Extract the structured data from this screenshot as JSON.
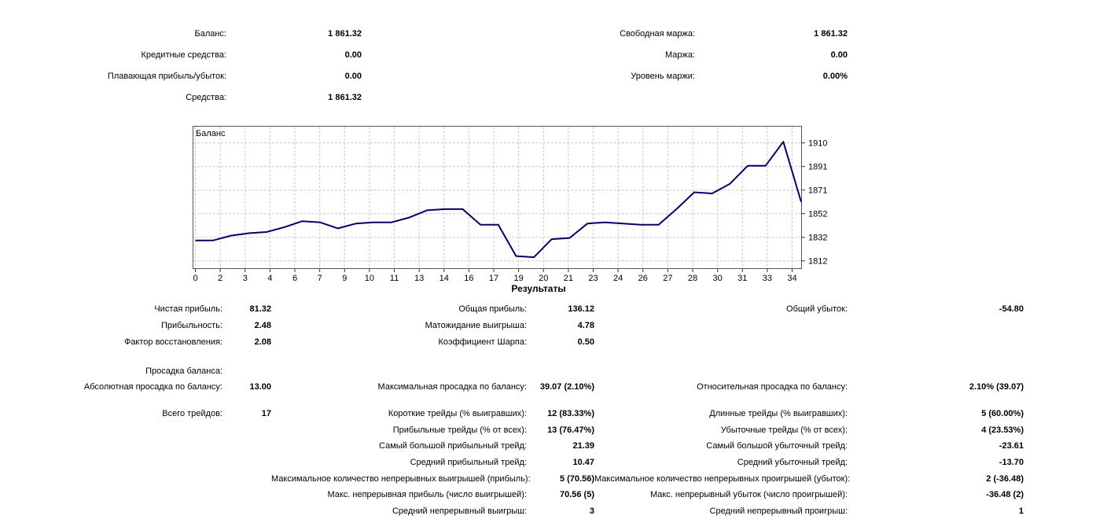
{
  "account_summary": {
    "left": [
      {
        "label": "Баланс:",
        "value": "1 861.32"
      },
      {
        "label": "Кредитные средства:",
        "value": "0.00"
      },
      {
        "label": "Плавающая прибыль/убыток:",
        "value": "0.00"
      },
      {
        "label": "Средства:",
        "value": "1 861.32"
      }
    ],
    "right": [
      {
        "label": "Свободная маржа:",
        "value": "1 861.32"
      },
      {
        "label": "Маржа:",
        "value": "0.00"
      },
      {
        "label": "Уровень маржи:",
        "value": "0.00%"
      }
    ]
  },
  "results_heading": "Результаты",
  "results_rows": [
    {
      "c1": {
        "label": "Чистая прибыль:",
        "value": "81.32"
      },
      "c2": {
        "label": "Общая прибыль:",
        "value": "136.12"
      },
      "c3": {
        "label": "Общий убыток:",
        "value": "-54.80"
      }
    },
    {
      "c1": {
        "label": "Прибыльность:",
        "value": "2.48"
      },
      "c2": {
        "label": "Матожидание выигрыша:",
        "value": "4.78"
      },
      "c3": null
    },
    {
      "c1": {
        "label": "Фактор восстановления:",
        "value": "2.08"
      },
      "c2": {
        "label": "Коэффициент Шарпа:",
        "value": "0.50"
      },
      "c3": null
    }
  ],
  "drawdown_heading_row": {
    "c1": {
      "label": "Просадка баланса:",
      "value": ""
    },
    "c2": null,
    "c3": null
  },
  "drawdown_rows": [
    {
      "c1": {
        "label": "Абсолютная просадка по балансу:",
        "value": "13.00"
      },
      "c2": {
        "label": "Максимальная просадка по балансу:",
        "value": "39.07 (2.10%)"
      },
      "c3": {
        "label": "Относительная просадка по балансу:",
        "value": "2.10% (39.07)"
      }
    }
  ],
  "trades_rows": [
    {
      "c1": {
        "label": "Всего трейдов:",
        "value": "17"
      },
      "c2": {
        "label": "Короткие трейды (% выигравших):",
        "value": "12 (83.33%)"
      },
      "c3": {
        "label": "Длинные трейды (% выигравших):",
        "value": "5 (60.00%)"
      }
    },
    {
      "c1": null,
      "c2": {
        "label": "Прибыльные трейды (% от всех):",
        "value": "13 (76.47%)"
      },
      "c3": {
        "label": "Убыточные трейды (% от всех):",
        "value": "4 (23.53%)"
      }
    },
    {
      "c1": null,
      "c2": {
        "label": "Самый большой прибыльный трейд:",
        "value": "21.39"
      },
      "c3": {
        "label": "Самый большой убыточный трейд:",
        "value": "-23.61"
      }
    },
    {
      "c1": null,
      "c2": {
        "label": "Средний прибыльный трейд:",
        "value": "10.47"
      },
      "c3": {
        "label": "Средний убыточный трейд:",
        "value": "-13.70"
      }
    },
    {
      "c1": null,
      "c2": {
        "label": "Максимальное количество непрерывных выигрышей (прибыль):",
        "value": "5 (70.56)"
      },
      "c3": {
        "label": "Максимальное количество непрерывных проигрышей (убыток):",
        "value": "2 (-36.48)"
      }
    },
    {
      "c1": null,
      "c2": {
        "label": "Макс. непрерывная прибыль (число выигрышей):",
        "value": "70.56 (5)"
      },
      "c3": {
        "label": "Макс. непрерывный убыток (число проигрышей):",
        "value": "-36.48 (2)"
      }
    },
    {
      "c1": null,
      "c2": {
        "label": "Средний непрерывный выигрыш:",
        "value": "3"
      },
      "c3": {
        "label": "Средний непрерывный проигрыш:",
        "value": "1"
      }
    }
  ],
  "chart_data": {
    "type": "line",
    "title": "Баланс",
    "legend": "Баланс",
    "xlabel": "",
    "ylabel": "",
    "x": [
      0,
      1,
      2,
      3,
      4,
      5,
      6,
      7,
      8,
      9,
      10,
      11,
      12,
      13,
      14,
      15,
      16,
      17,
      18,
      19,
      20,
      21,
      22,
      23,
      24,
      25,
      26,
      27,
      28,
      29,
      30,
      31,
      32,
      33,
      34
    ],
    "series": [
      {
        "name": "Баланс",
        "color": "#000080",
        "values": [
          1829,
          1829,
          1833,
          1835,
          1836,
          1840,
          1845,
          1844,
          1839,
          1843,
          1844,
          1844,
          1848,
          1854,
          1855,
          1855,
          1842,
          1842,
          1816,
          1815,
          1830,
          1831,
          1843,
          1844,
          1843,
          1842,
          1842,
          1855,
          1869,
          1868,
          1876,
          1891,
          1891,
          1911,
          1861
        ]
      }
    ],
    "x_tick_labels": [
      "0",
      "2",
      "3",
      "4",
      "6",
      "7",
      "9",
      "10",
      "11",
      "13",
      "14",
      "16",
      "17",
      "19",
      "20",
      "21",
      "23",
      "24",
      "26",
      "27",
      "28",
      "30",
      "31",
      "33",
      "34"
    ],
    "y_tick_labels": [
      "1910",
      "1891",
      "1871",
      "1852",
      "1832",
      "1812"
    ],
    "ylim": [
      1807,
      1924
    ],
    "grid": true,
    "grid_color": "#c9c9c9",
    "border_color": "#555555",
    "legend_position": "top-left"
  }
}
